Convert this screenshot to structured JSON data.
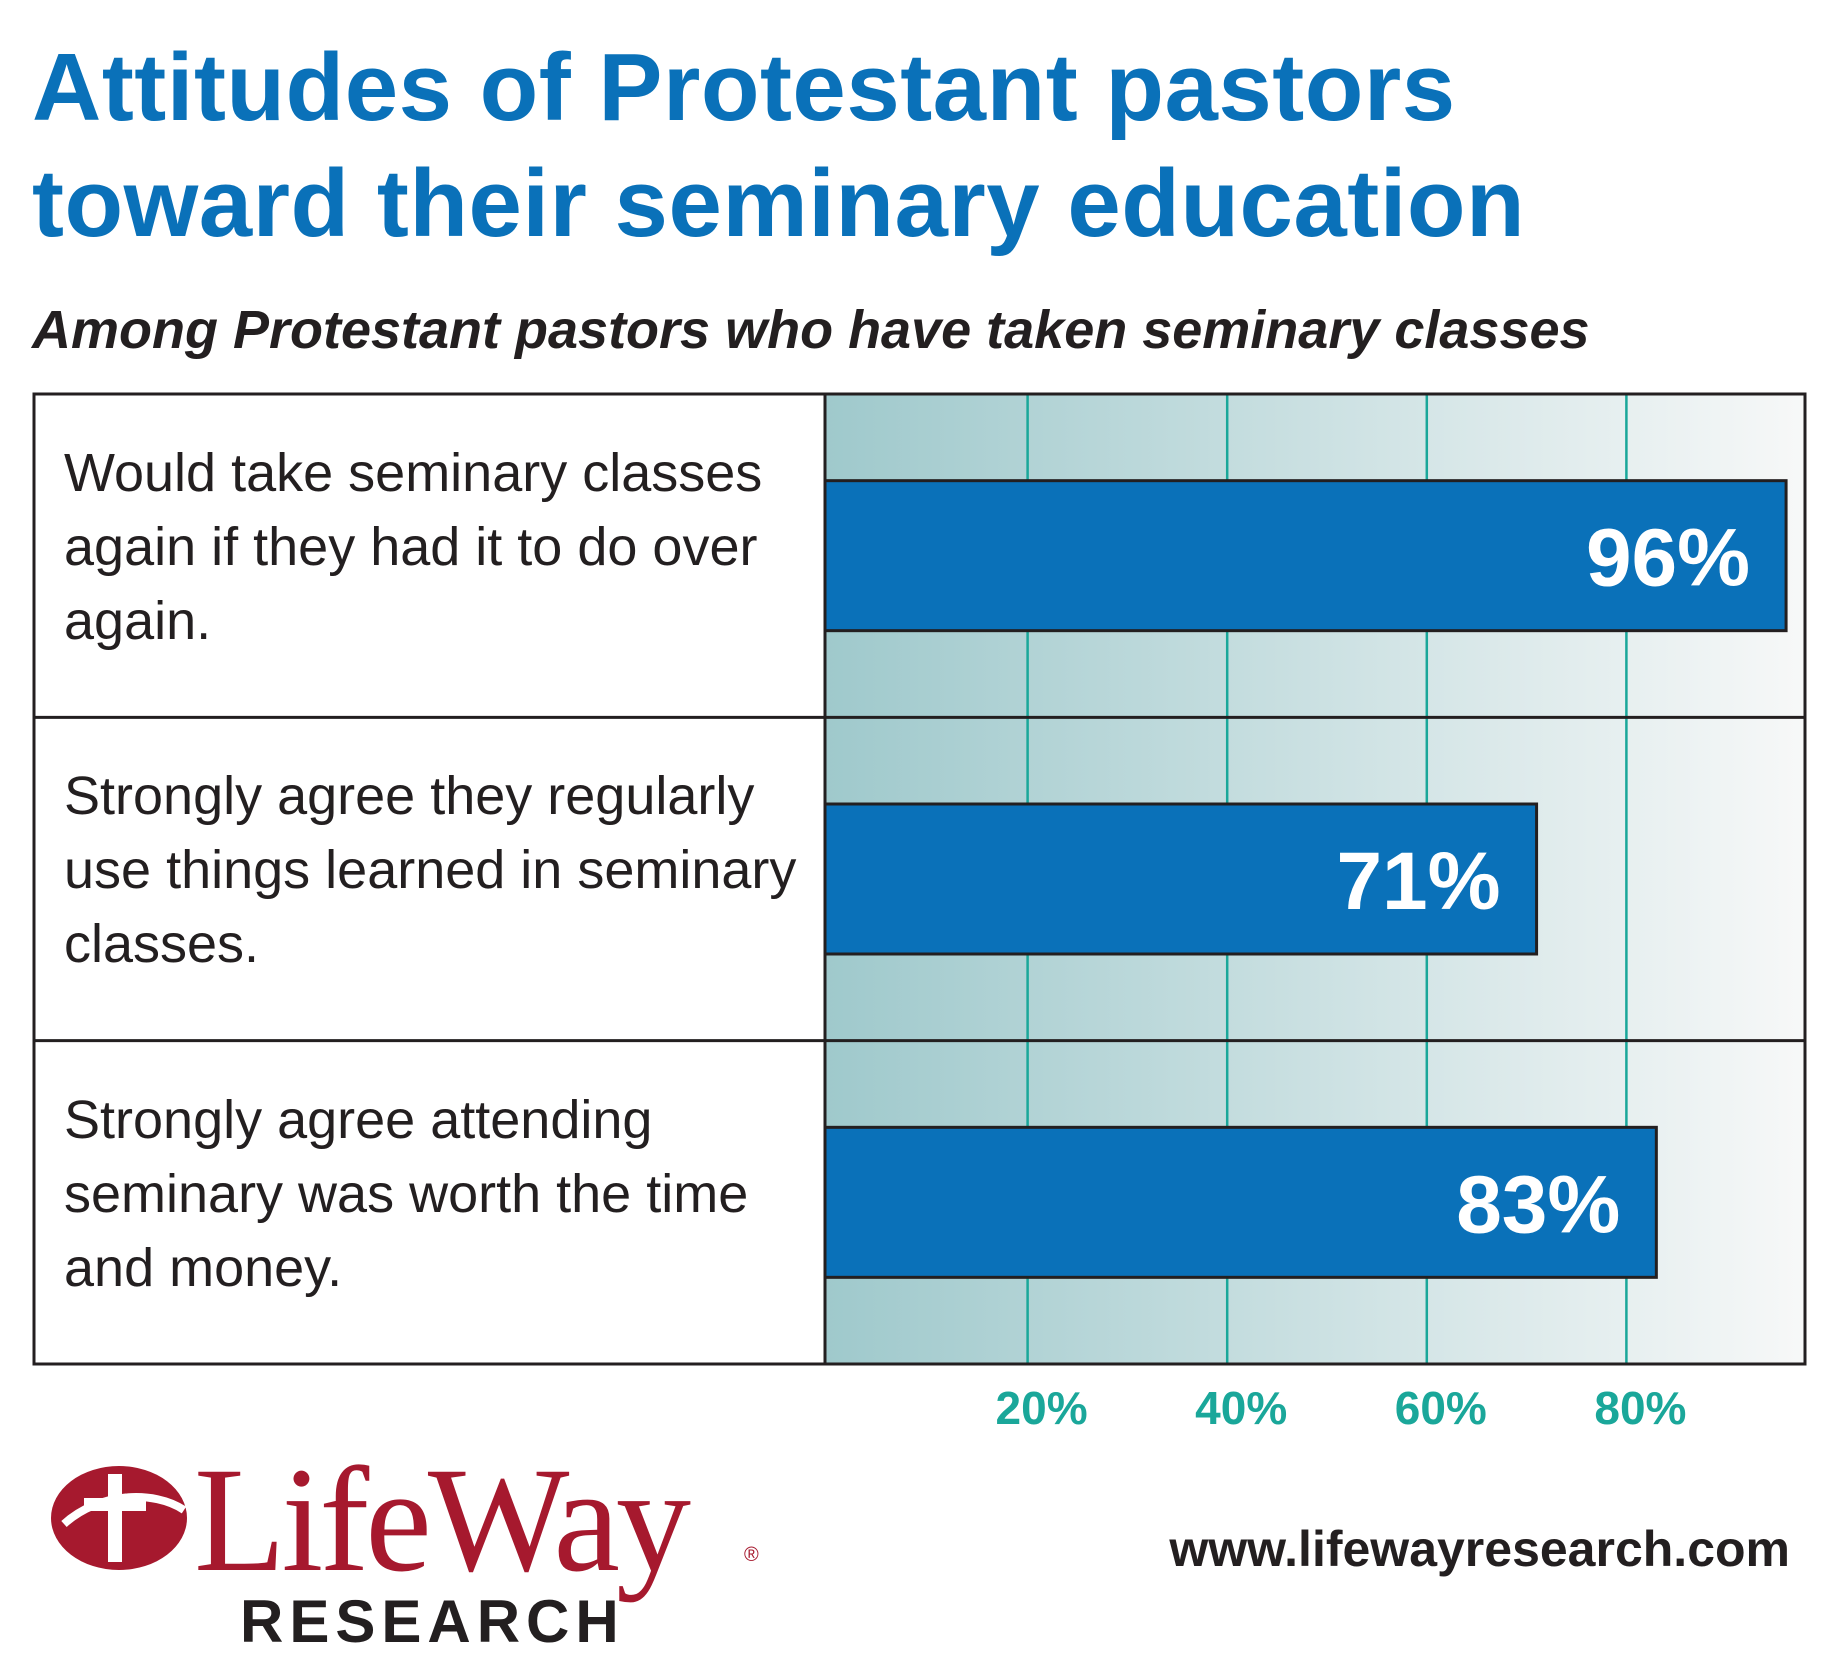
{
  "title": "Attitudes of Protestant pastors\ntoward their seminary education",
  "subtitle": "Among Protestant pastors who have taken seminary classes",
  "chart_data": {
    "type": "bar",
    "orientation": "horizontal",
    "categories": [
      "Would take seminary classes again if they had it to do over again.",
      "Strongly agree they regularly use things learned in seminary classes.",
      "Strongly agree attending seminary was worth the time and money."
    ],
    "values": [
      96,
      71,
      83
    ],
    "data_labels": [
      "96%",
      "71%",
      "83%"
    ],
    "x_ticks": [
      "20%",
      "40%",
      "60%",
      "80%"
    ],
    "xlim": [
      0,
      100
    ],
    "grid": true,
    "bar_color": "#0a71b9",
    "grid_color": "#1aa79a",
    "tick_color": "#1aa79a"
  },
  "logo": {
    "name": "LifeWay",
    "sub": "RESEARCH",
    "mark": "cross-emblem-icon",
    "color": "#a6192e"
  },
  "url": "www.lifewayresearch.com"
}
